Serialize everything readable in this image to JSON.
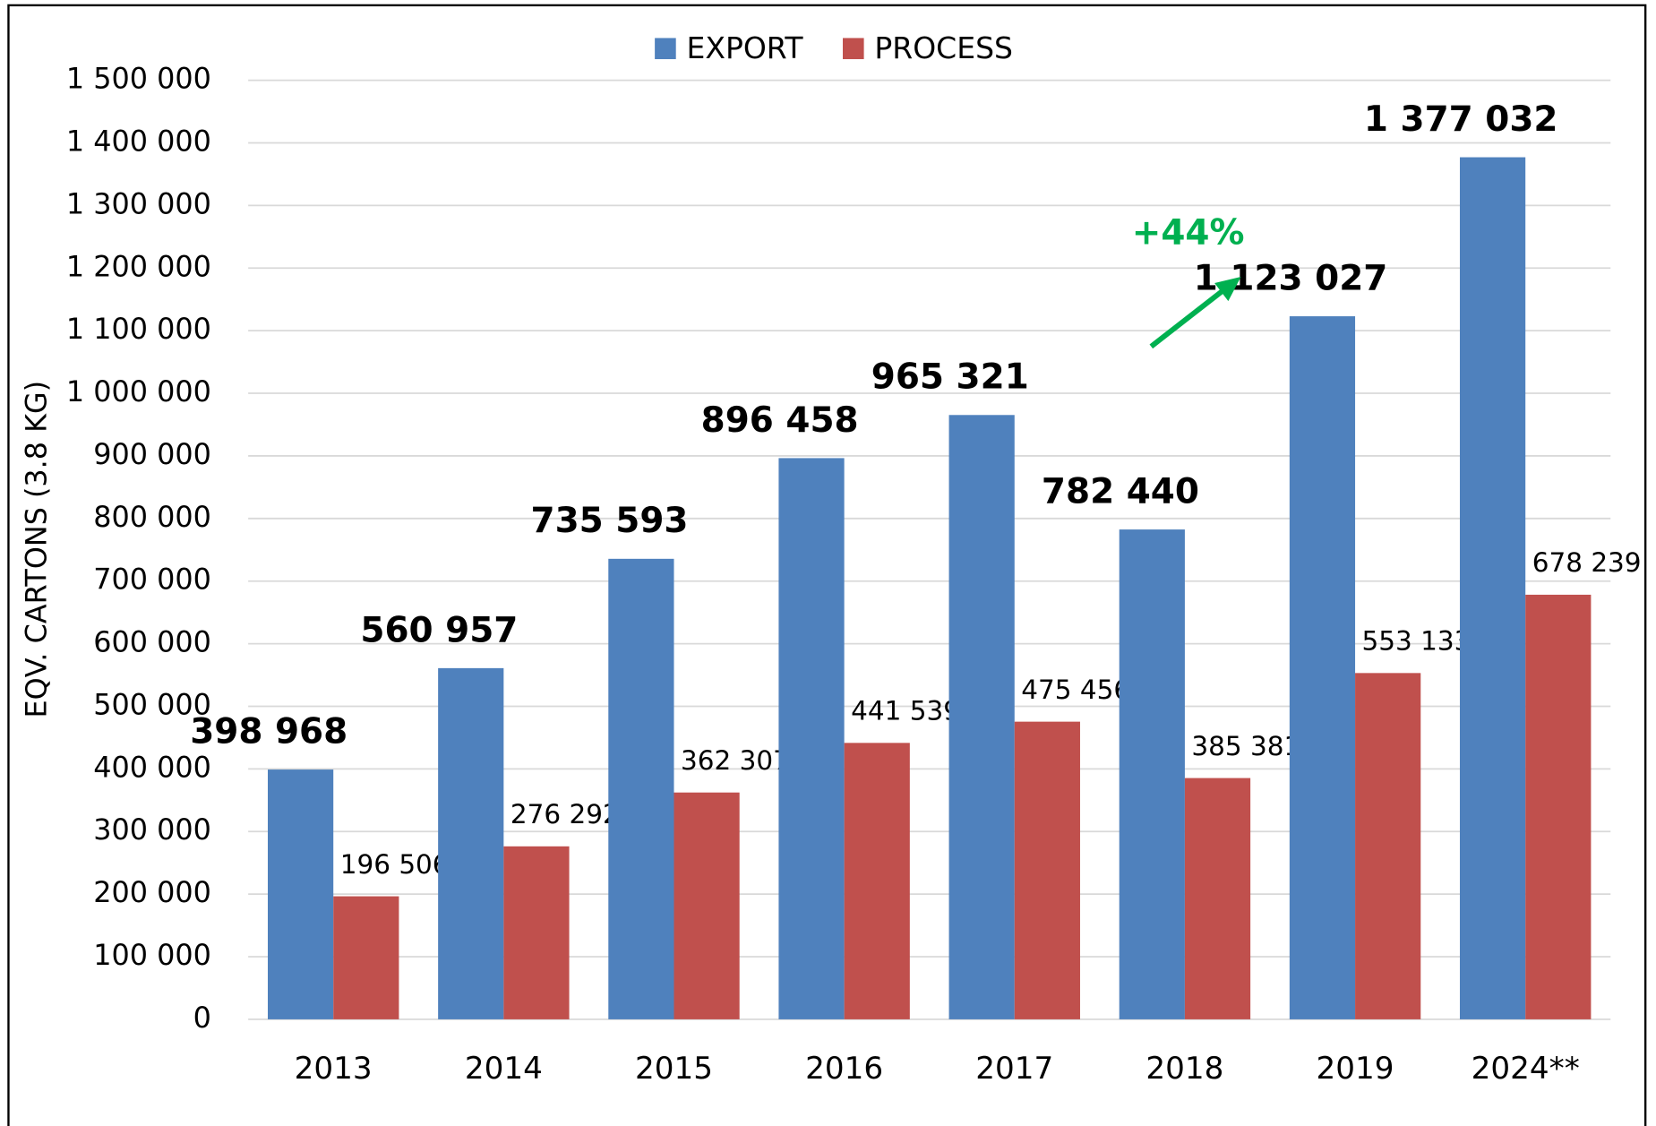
{
  "chart_data": {
    "type": "bar",
    "y_label": "EQV. CARTONS (3.8 KG)",
    "categories": [
      "2013",
      "2014",
      "2015",
      "2016",
      "2017",
      "2018",
      "2019",
      "2024**"
    ],
    "series": [
      {
        "name": "EXPORT",
        "color": "#4f81bd",
        "values": [
          398968,
          560957,
          735593,
          896458,
          965321,
          782440,
          1123027,
          1377032
        ],
        "value_labels": [
          "398 968",
          "560 957",
          "735 593",
          "896 458",
          "965 321",
          "782 440",
          "1 123 027",
          "1 377 032"
        ]
      },
      {
        "name": "PROCESS",
        "color": "#c0504d",
        "values": [
          196506,
          276292,
          362307,
          441539,
          475456,
          385381,
          553133,
          678239
        ],
        "value_labels": [
          "196 506",
          "276 292",
          "362 307",
          "441 539",
          "475 456",
          "385 381",
          "553 133",
          "678 239"
        ]
      }
    ],
    "ylim": [
      0,
      1500000
    ],
    "yticks": [
      0,
      {
        "value": 100000,
        "label": "100 000"
      },
      {
        "value": 200000,
        "label": "200 000"
      },
      {
        "value": 300000,
        "label": "300 000"
      },
      {
        "value": 400000,
        "label": "400 000"
      },
      {
        "value": 500000,
        "label": "500 000"
      },
      {
        "value": 600000,
        "label": "600 000"
      },
      {
        "value": 700000,
        "label": "700 000"
      },
      {
        "value": 800000,
        "label": "800 000"
      },
      {
        "value": 900000,
        "label": "900 000"
      },
      {
        "value": 1000000,
        "label": "1 000 000"
      },
      {
        "value": 1100000,
        "label": "1 100 000"
      },
      {
        "value": 1200000,
        "label": "1 200 000"
      },
      {
        "value": 1300000,
        "label": "1 300 000"
      },
      {
        "value": 1400000,
        "label": "1 400 000"
      },
      {
        "value": 1500000,
        "label": "1 500 000"
      }
    ],
    "grid": true,
    "legend": "top",
    "annotation": {
      "text": "+44%",
      "color": "#00b050"
    }
  }
}
